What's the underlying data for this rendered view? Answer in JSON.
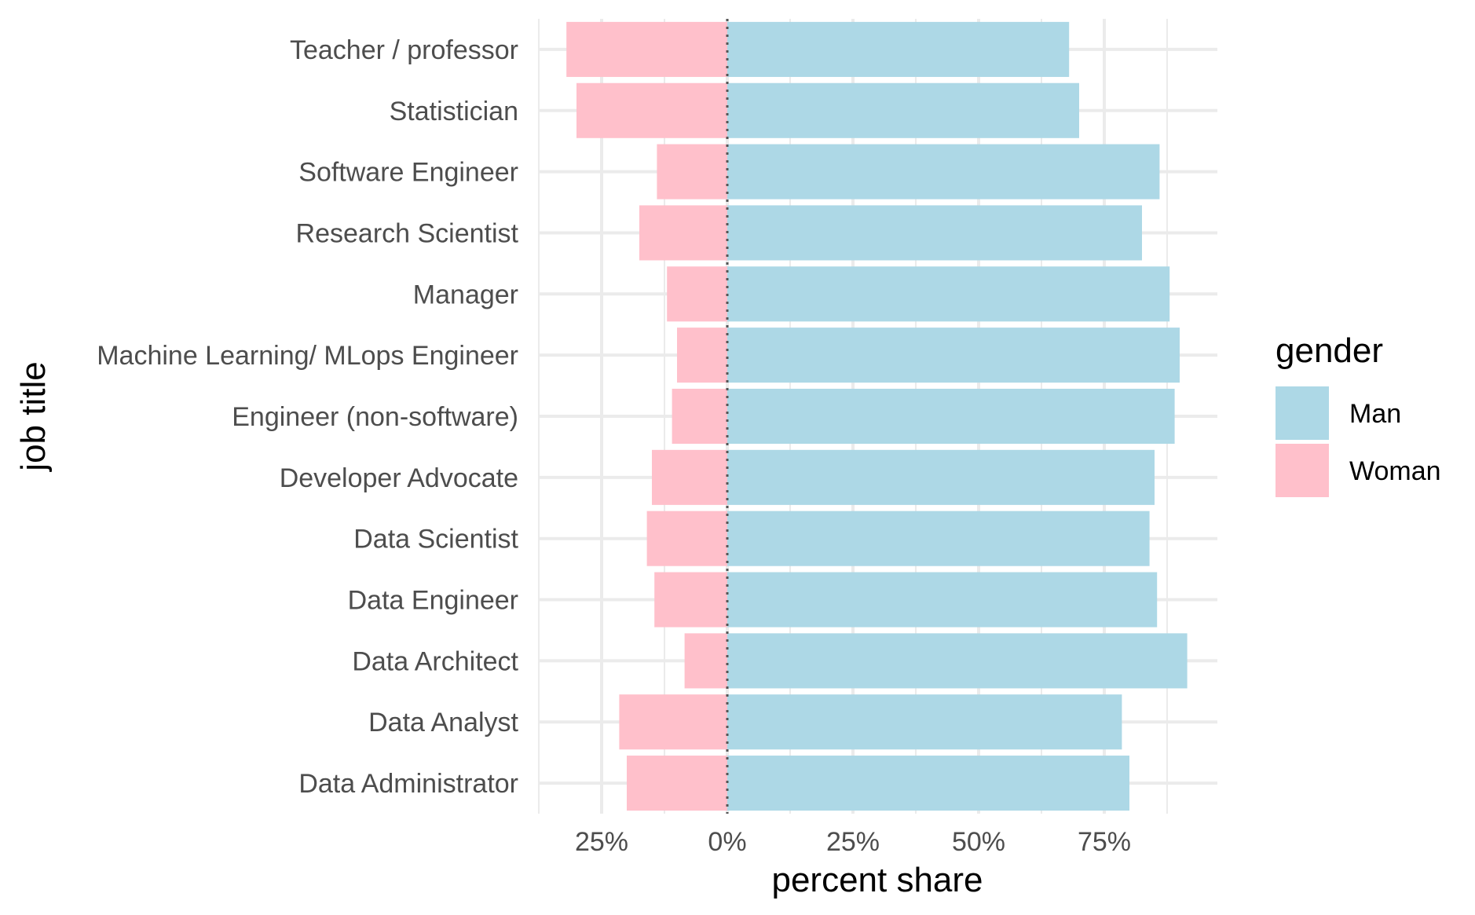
{
  "chart_data": {
    "type": "bar",
    "orientation": "horizontal",
    "stacking": "diverging",
    "xlabel": "percent share",
    "ylabel": "job title",
    "xlim": [
      -0.375,
      0.975
    ],
    "x_ticks": [
      {
        "value": -0.25,
        "label": "25%"
      },
      {
        "value": 0,
        "label": "0%"
      },
      {
        "value": 0.25,
        "label": "25%"
      },
      {
        "value": 0.5,
        "label": "50%"
      },
      {
        "value": 0.75,
        "label": "75%"
      }
    ],
    "x_minor_gridlines": [
      -0.375,
      -0.125,
      0.125,
      0.375,
      0.625,
      0.875
    ],
    "grid": true,
    "zero_line": "dotted",
    "categories": [
      "Teacher / professor",
      "Statistician",
      "Software Engineer",
      "Research Scientist",
      "Manager",
      "Machine Learning/ MLops Engineer",
      "Engineer (non-software)",
      "Developer Advocate",
      "Data Scientist",
      "Data Engineer",
      "Data Architect",
      "Data Analyst",
      "Data Administrator"
    ],
    "series": [
      {
        "name": "Man",
        "color": "#ADD8E6",
        "direction": "right",
        "values": [
          0.68,
          0.7,
          0.86,
          0.825,
          0.88,
          0.9,
          0.89,
          0.85,
          0.84,
          0.855,
          0.915,
          0.785,
          0.8
        ]
      },
      {
        "name": "Woman",
        "color": "#FFC0CB",
        "direction": "left",
        "values": [
          0.32,
          0.3,
          0.14,
          0.175,
          0.12,
          0.1,
          0.11,
          0.15,
          0.16,
          0.145,
          0.085,
          0.215,
          0.2
        ]
      }
    ],
    "legend": {
      "title": "gender",
      "placement": "right"
    }
  }
}
